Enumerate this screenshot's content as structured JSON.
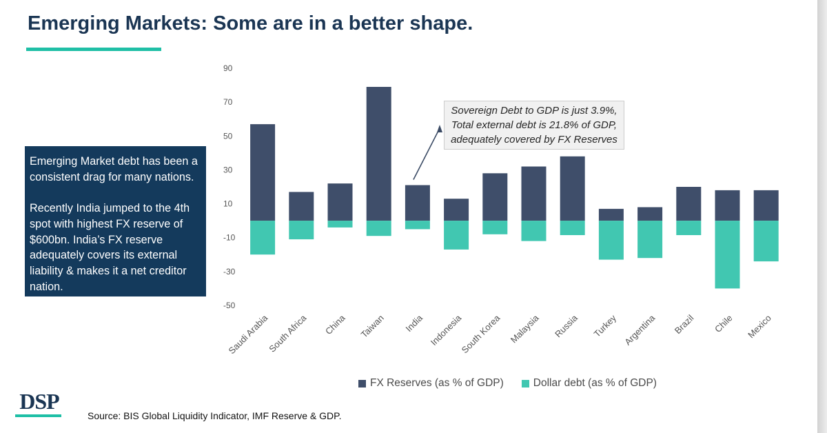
{
  "header": {
    "title": "Emerging Markets: Some are in a better shape."
  },
  "info_box": {
    "paragraph_1": "Emerging Market debt has been a consistent drag for many nations.",
    "paragraph_2": "Recently India jumped to the 4th spot with highest FX reserve of $600bn. India’s FX reserve adequately covers its external liability & makes it a net creditor nation."
  },
  "annotation": {
    "line_1": "Sovereign Debt to GDP is just 3.9%,",
    "line_2": "Total external debt is 21.8% of GDP,",
    "line_3": "adequately covered by FX Reserves",
    "points_to": "India"
  },
  "footer": {
    "logo": "DSP",
    "source": "Source: BIS Global Liquidity Indicator, IMF Reserve & GDP."
  },
  "colors": {
    "title": "#1a3553",
    "accent": "#1fbfa6",
    "info_box_bg": "#143a5c",
    "fx_reserves": "#3f4e6a",
    "dollar_debt": "#41c7b1"
  },
  "chart_data": {
    "type": "bar",
    "stacked": false,
    "categories": [
      "Saudi Arabia",
      "South Africa",
      "China",
      "Taiwan",
      "India",
      "Indonesia",
      "South Korea",
      "Malaysia",
      "Russia",
      "Turkey",
      "Argentina",
      "Brazil",
      "Chile",
      "Mexico"
    ],
    "series": [
      {
        "name": "FX Reserves (as % of GDP)",
        "color": "#3f4e6a",
        "values": [
          57,
          17,
          22,
          79,
          21,
          13,
          28,
          32,
          38,
          7,
          8,
          20,
          18,
          18
        ]
      },
      {
        "name": "Dollar debt (as % of GDP)",
        "color": "#41c7b1",
        "values": [
          -20,
          -11,
          -4,
          -9,
          -5,
          -17,
          -8,
          -12,
          -8.5,
          -23,
          -22,
          -8.5,
          -40,
          -24
        ]
      }
    ],
    "y_ticks": [
      90,
      70,
      50,
      30,
      10,
      -10,
      -30,
      -50
    ],
    "ylim": [
      -50,
      90
    ],
    "grid": false,
    "legend_position": "bottom"
  }
}
